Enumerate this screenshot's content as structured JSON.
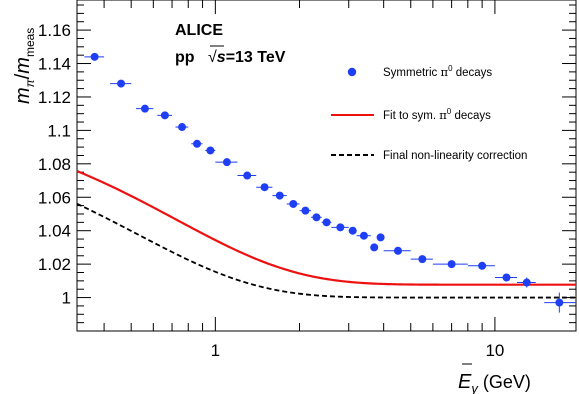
{
  "chart_data": {
    "type": "scatter",
    "xscale": "log",
    "xlim": [
      0.32,
      19.5
    ],
    "ylim": [
      0.98,
      1.178
    ],
    "grid": false,
    "legend_position": "top-right",
    "x_axis_title": {
      "main": "E",
      "sub": "γ",
      "unit": " (GeV)"
    },
    "y_axis_title": {
      "part1": "m",
      "part1_sub": "π",
      "slash": "/",
      "part2": "m",
      "part2_sub": "meas"
    },
    "x_ticks": [
      {
        "value": 1,
        "label": "1"
      },
      {
        "value": 10,
        "label": "10"
      }
    ],
    "y_ticks": [
      {
        "value": 1.0,
        "label": "1"
      },
      {
        "value": 1.02,
        "label": "1.02"
      },
      {
        "value": 1.04,
        "label": "1.04"
      },
      {
        "value": 1.06,
        "label": "1.06"
      },
      {
        "value": 1.08,
        "label": "1.08"
      },
      {
        "value": 1.1,
        "label": "1.1"
      },
      {
        "value": 1.12,
        "label": "1.12"
      },
      {
        "value": 1.14,
        "label": "1.14"
      },
      {
        "value": 1.16,
        "label": "1.16"
      }
    ],
    "annotations": {
      "experiment": "ALICE",
      "system_prefix": "pp",
      "system_energy": "s",
      "system_suffix": "=13 TeV"
    },
    "legend": [
      {
        "kind": "marker",
        "prefix": "Symmetric ",
        "symbol": "π",
        "sup": "0",
        "suffix": " decays",
        "color": "#1f3ff5"
      },
      {
        "kind": "solid",
        "prefix": "Fit to sym. ",
        "symbol": "π",
        "sup": "0",
        "suffix": " decays",
        "color": "#ee1111"
      },
      {
        "kind": "dashed",
        "prefix": "Final non-linearity correction",
        "symbol": "",
        "sup": "",
        "suffix": "",
        "color": "#000000"
      }
    ],
    "series": [
      {
        "name": "Symmetric π⁰ decays",
        "marker_color": "#1f3ff5",
        "points": [
          {
            "x": 0.37,
            "y": 1.144,
            "xlo": 0.34,
            "xhi": 0.4,
            "yerr": 0.0
          },
          {
            "x": 0.46,
            "y": 1.128,
            "xlo": 0.42,
            "xhi": 0.5,
            "yerr": 0.0
          },
          {
            "x": 0.56,
            "y": 1.113,
            "xlo": 0.52,
            "xhi": 0.6,
            "yerr": 0.0
          },
          {
            "x": 0.66,
            "y": 1.109,
            "xlo": 0.62,
            "xhi": 0.7,
            "yerr": 0.0
          },
          {
            "x": 0.76,
            "y": 1.102,
            "xlo": 0.72,
            "xhi": 0.8,
            "yerr": 0.0
          },
          {
            "x": 0.86,
            "y": 1.092,
            "xlo": 0.82,
            "xhi": 0.9,
            "yerr": 0.0
          },
          {
            "x": 0.96,
            "y": 1.088,
            "xlo": 0.92,
            "xhi": 1.0,
            "yerr": 0.0
          },
          {
            "x": 1.1,
            "y": 1.081,
            "xlo": 1.0,
            "xhi": 1.2,
            "yerr": 0.0
          },
          {
            "x": 1.3,
            "y": 1.073,
            "xlo": 1.2,
            "xhi": 1.4,
            "yerr": 0.0
          },
          {
            "x": 1.5,
            "y": 1.066,
            "xlo": 1.4,
            "xhi": 1.6,
            "yerr": 0.0
          },
          {
            "x": 1.7,
            "y": 1.061,
            "xlo": 1.6,
            "xhi": 1.8,
            "yerr": 0.0
          },
          {
            "x": 1.9,
            "y": 1.056,
            "xlo": 1.8,
            "xhi": 2.0,
            "yerr": 0.0
          },
          {
            "x": 2.1,
            "y": 1.052,
            "xlo": 2.0,
            "xhi": 2.2,
            "yerr": 0.0
          },
          {
            "x": 2.3,
            "y": 1.048,
            "xlo": 2.2,
            "xhi": 2.4,
            "yerr": 0.0
          },
          {
            "x": 2.5,
            "y": 1.045,
            "xlo": 2.4,
            "xhi": 2.6,
            "yerr": 0.0
          },
          {
            "x": 2.8,
            "y": 1.042,
            "xlo": 2.6,
            "xhi": 3.0,
            "yerr": 0.0
          },
          {
            "x": 3.1,
            "y": 1.04,
            "xlo": 3.0,
            "xhi": 3.2,
            "yerr": 0.0
          },
          {
            "x": 3.4,
            "y": 1.037,
            "xlo": 3.2,
            "xhi": 3.6,
            "yerr": 0.0
          },
          {
            "x": 3.7,
            "y": 1.03,
            "xlo": 3.6,
            "xhi": 3.8,
            "yerr": 0.0
          },
          {
            "x": 3.9,
            "y": 1.036,
            "xlo": 3.8,
            "xhi": 4.0,
            "yerr": 0.0
          },
          {
            "x": 4.5,
            "y": 1.028,
            "xlo": 4.0,
            "xhi": 5.0,
            "yerr": 0.0
          },
          {
            "x": 5.5,
            "y": 1.023,
            "xlo": 5.0,
            "xhi": 6.0,
            "yerr": 0.0
          },
          {
            "x": 7.0,
            "y": 1.02,
            "xlo": 6.0,
            "xhi": 8.0,
            "yerr": 0.0
          },
          {
            "x": 9.0,
            "y": 1.019,
            "xlo": 8.0,
            "xhi": 10.0,
            "yerr": 0.0
          },
          {
            "x": 11.0,
            "y": 1.012,
            "xlo": 10.0,
            "xhi": 12.0,
            "yerr": 0.002
          },
          {
            "x": 13.0,
            "y": 1.009,
            "xlo": 12.0,
            "xhi": 14.0,
            "yerr": 0.003
          },
          {
            "x": 17.0,
            "y": 0.997,
            "xlo": 15.0,
            "xhi": 19.5,
            "yerr": 0.006
          }
        ]
      },
      {
        "name": "Fit to sym. π⁰ decays",
        "color": "#ee1111",
        "model": {
          "a": 1.0077,
          "b": 0.1056,
          "c": 0.7265
        },
        "x_range": [
          0.32,
          19.5
        ]
      },
      {
        "name": "Final non-linearity correction",
        "color": "#000000",
        "model": {
          "a": 1.0,
          "b": 0.103,
          "c": 0.5265
        },
        "x_range": [
          0.32,
          19.5
        ]
      }
    ]
  }
}
